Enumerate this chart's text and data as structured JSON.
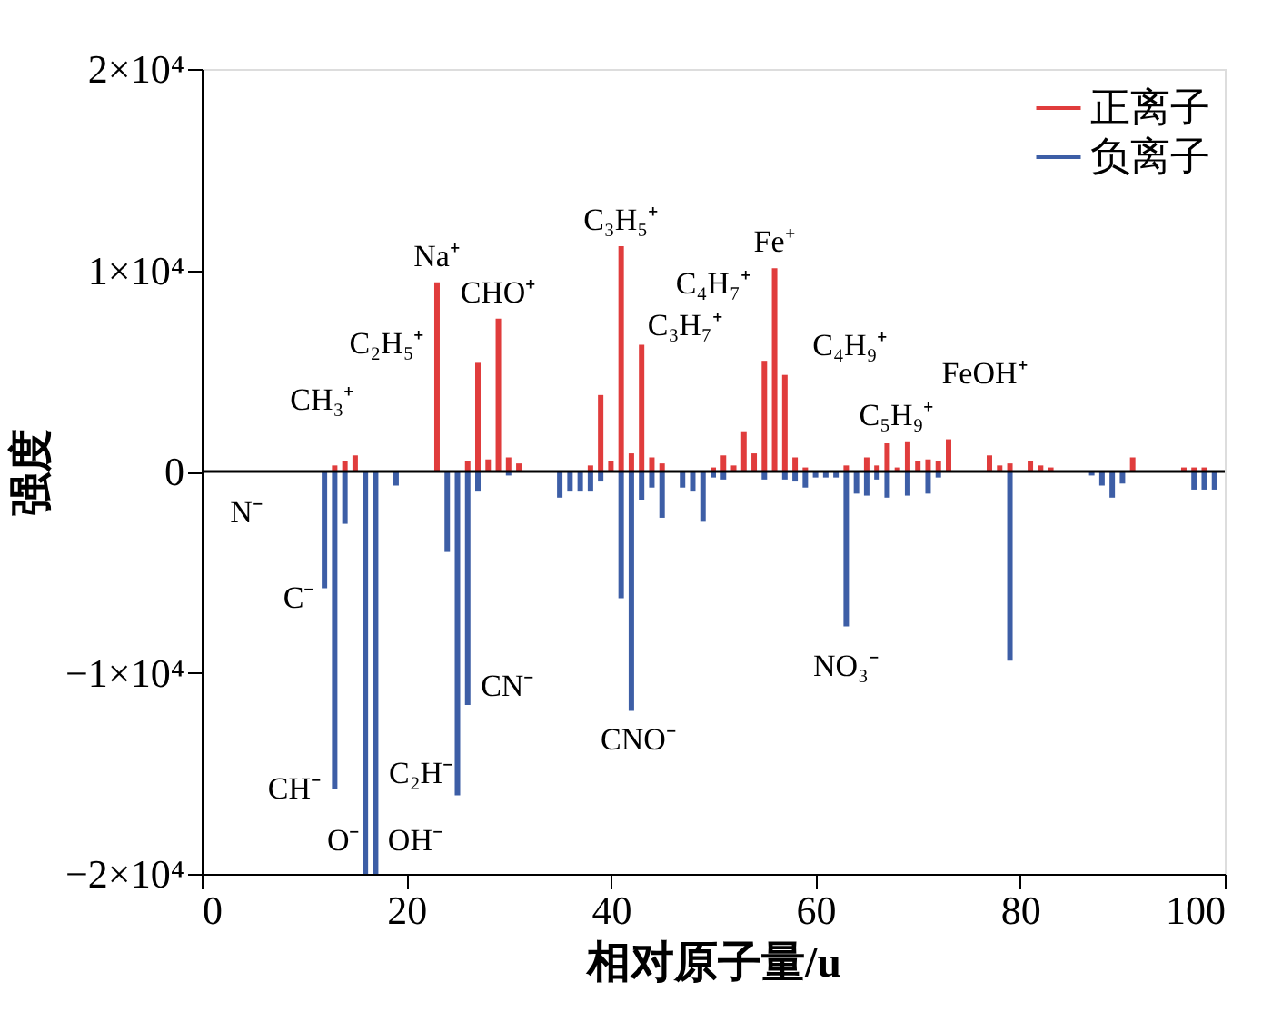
{
  "chart_data": {
    "type": "bar",
    "xlabel": "相对原子量/u",
    "ylabel": "强度",
    "xlim": [
      0,
      100
    ],
    "xticks": [
      0,
      20,
      40,
      60,
      80,
      100
    ],
    "ylim": [
      -20000,
      20000
    ],
    "yticks": [
      {
        "value": -20000,
        "label": "−2×10⁴"
      },
      {
        "value": -10000,
        "label": "−1×10⁴"
      },
      0,
      {
        "value": 10000,
        "label": "1×10⁴"
      },
      {
        "value": 20000,
        "label": "2×10⁴"
      }
    ],
    "grid": false,
    "legend": "top right",
    "series": [
      {
        "name": "正离子",
        "color": "#e03c3c",
        "x": [
          13,
          14,
          15,
          23,
          26,
          27,
          28,
          29,
          30,
          31,
          38,
          39,
          40,
          41,
          42,
          43,
          44,
          45,
          50,
          51,
          52,
          53,
          54,
          55,
          56,
          57,
          58,
          59,
          63,
          65,
          66,
          67,
          68,
          69,
          70,
          71,
          72,
          73,
          77,
          78,
          79,
          81,
          82,
          83,
          91,
          96,
          97,
          98
        ],
        "values": [
          300,
          500,
          800,
          9400,
          500,
          5400,
          600,
          7600,
          700,
          400,
          300,
          3800,
          500,
          11200,
          900,
          6300,
          700,
          400,
          200,
          800,
          300,
          2000,
          900,
          5500,
          10100,
          4800,
          700,
          200,
          300,
          700,
          300,
          1400,
          200,
          1500,
          500,
          600,
          500,
          1600,
          800,
          300,
          400,
          500,
          300,
          200,
          700,
          200,
          200,
          200
        ]
      },
      {
        "name": "负离子",
        "color": "#3d5ea6",
        "x": [
          12,
          13,
          14,
          16,
          17,
          19,
          24,
          25,
          26,
          27,
          30,
          35,
          36,
          37,
          38,
          39,
          41,
          42,
          43,
          44,
          45,
          47,
          48,
          49,
          50,
          51,
          55,
          57,
          58,
          59,
          60,
          61,
          62,
          63,
          64,
          65,
          66,
          67,
          69,
          71,
          72,
          79,
          87,
          88,
          89,
          90,
          97,
          98,
          99
        ],
        "values": [
          -5800,
          -15800,
          -2600,
          -20000,
          -20000,
          -700,
          -4000,
          -16100,
          -11600,
          -1000,
          -200,
          -1300,
          -1000,
          -1000,
          -1000,
          -500,
          -6300,
          -11900,
          -1400,
          -800,
          -2300,
          -800,
          -1000,
          -2500,
          -300,
          -400,
          -400,
          -400,
          -500,
          -800,
          -300,
          -300,
          -300,
          -7700,
          -1100,
          -1200,
          -400,
          -1300,
          -1200,
          -1100,
          -300,
          -9400,
          -200,
          -700,
          -1300,
          -600,
          -900,
          -900,
          -900
        ]
      }
    ],
    "ref_lines": [
      {
        "axis": "y",
        "value": 0,
        "color": "#000000"
      }
    ],
    "annotations": [
      {
        "text": "CH₃⁺",
        "x": 15,
        "y": 800
      },
      {
        "text": "Na⁺",
        "x": 23,
        "y": 9400
      },
      {
        "text": "C₂H₅⁺",
        "x": 27,
        "y": 5400
      },
      {
        "text": "CHO⁺",
        "x": 29,
        "y": 7600
      },
      {
        "text": "C₃H₅⁺",
        "x": 41,
        "y": 11200
      },
      {
        "text": "C₃H₇⁺",
        "x": 43,
        "y": 6300
      },
      {
        "text": "Fe⁺",
        "x": 56,
        "y": 10100
      },
      {
        "text": "C₄H₇⁺",
        "x": 55,
        "y": 5500
      },
      {
        "text": "C₄H₉⁺",
        "x": 57,
        "y": 4800
      },
      {
        "text": "C₅H₉⁺",
        "x": 69,
        "y": 1500
      },
      {
        "text": "FeOH⁺",
        "x": 73,
        "y": 1600
      },
      {
        "text": "N⁻",
        "x": 14,
        "y": -2600
      },
      {
        "text": "C⁻",
        "x": 12,
        "y": -5800
      },
      {
        "text": "CH⁻",
        "x": 13,
        "y": -15800
      },
      {
        "text": "O⁻",
        "x": 16,
        "y": -20000
      },
      {
        "text": "OH⁻",
        "x": 17,
        "y": -20000
      },
      {
        "text": "C₂H⁻",
        "x": 25,
        "y": -16100
      },
      {
        "text": "CN⁻",
        "x": 26,
        "y": -11600
      },
      {
        "text": "CNO⁻",
        "x": 42,
        "y": -11900
      },
      {
        "text": "NO₃⁻",
        "x": 63,
        "y": -7700
      }
    ]
  }
}
